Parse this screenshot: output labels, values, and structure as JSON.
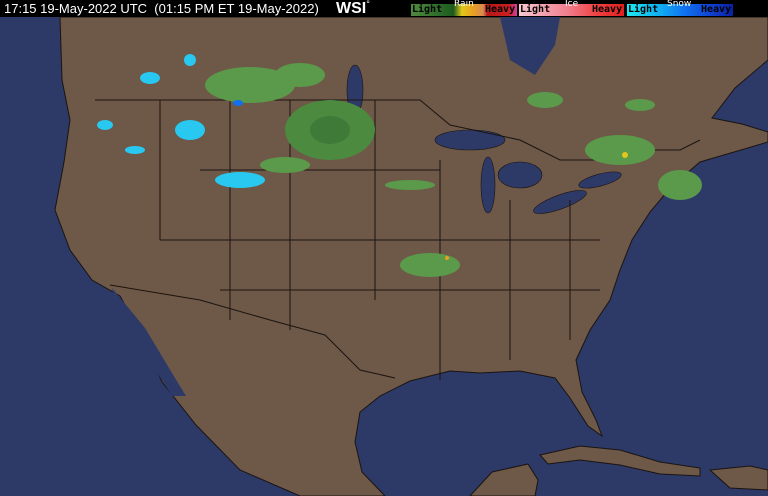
{
  "header": {
    "timestamp": "17:15 19-May-2022 UTC  (01:15 PM ET 19-May-2022)",
    "logo": "WSI",
    "logo_mark": "°"
  },
  "legend": {
    "rain": {
      "title": "Rain",
      "low": "Light",
      "high": "Heavy",
      "colors": [
        "#4f8a3e",
        "#2f6e2a",
        "#1e5a1e",
        "#e0c81a",
        "#e8a020",
        "#d88a50",
        "#b81818",
        "#d040a0"
      ]
    },
    "ice": {
      "title": "Ice",
      "low": "Light",
      "high": "Heavy",
      "colors": [
        "#f8c8d0",
        "#f4a0b0",
        "#f08090",
        "#f06060",
        "#f04040",
        "#e02020"
      ]
    },
    "snow": {
      "title": "Snow",
      "low": "Light",
      "high": "Heavy",
      "colors": [
        "#20e8f0",
        "#10b0f0",
        "#1070f0",
        "#1050e0",
        "#1030c0",
        "#0a20a0"
      ]
    }
  },
  "map": {
    "colors": {
      "ocean": "#2d3a68",
      "land": "#6e5848",
      "border": "#1a1410",
      "rain_light": "#5a9a4a",
      "rain_mid": "#3f7a38",
      "snow": "#28c8f0"
    }
  }
}
